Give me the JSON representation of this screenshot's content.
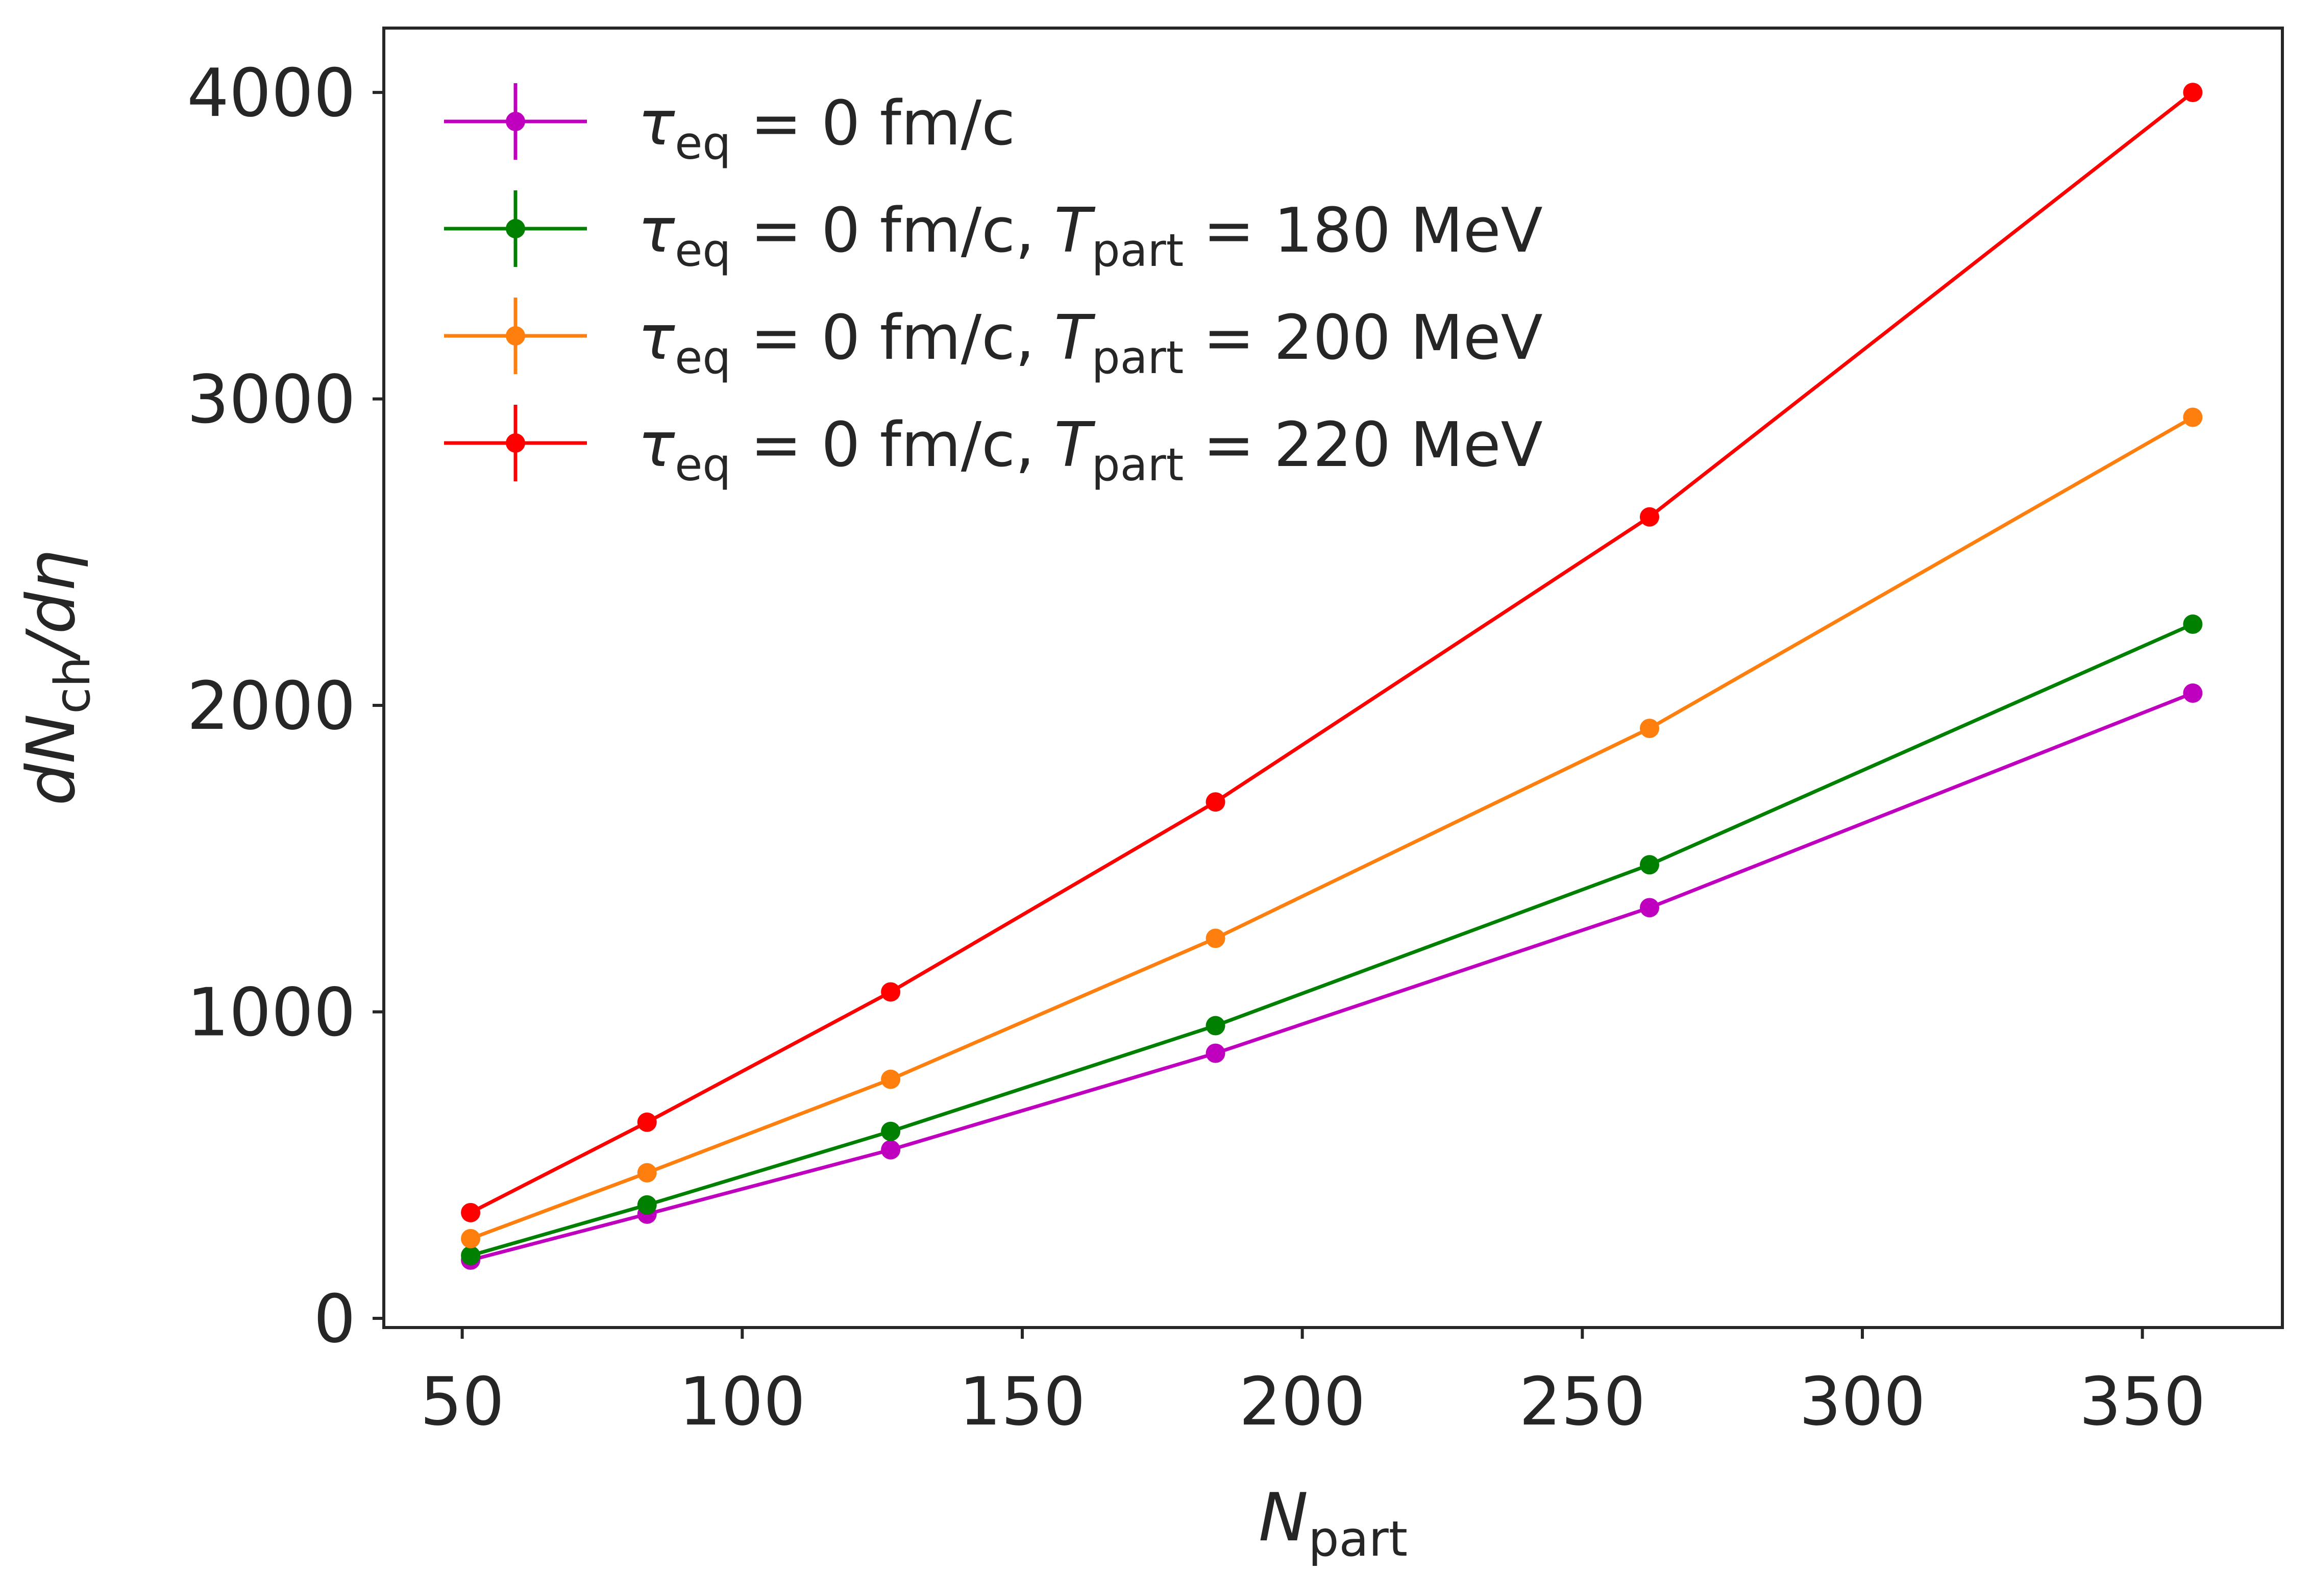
{
  "chart_data": {
    "type": "line",
    "title": "",
    "xlabel_main": "N",
    "xlabel_sub": "part",
    "ylabel_pre": "dN",
    "ylabel_sub": "ch",
    "ylabel_post": "/dη",
    "xlim": [
      36,
      375
    ],
    "ylim": [
      -30,
      4210
    ],
    "x_ticks": [
      50,
      100,
      150,
      200,
      250,
      300,
      350
    ],
    "x_tick_labels": [
      "50",
      "100",
      "150",
      "200",
      "250",
      "300",
      "350"
    ],
    "y_ticks": [
      0,
      1000,
      2000,
      3000,
      4000
    ],
    "y_tick_labels": [
      "0",
      "1000",
      "2000",
      "3000",
      "4000"
    ],
    "x": [
      51.5,
      83,
      126.5,
      184.5,
      262,
      359
    ],
    "series": [
      {
        "name": "τ_eq = 0 fm/c",
        "legend": {
          "tau": "τ",
          "tau_sub": "eq",
          "text": " = 0 fm/c",
          "t": "",
          "t_sub": "",
          "t_text": ""
        },
        "color": "#bf00bf",
        "values": [
          190,
          340,
          550,
          865,
          1340,
          2040
        ]
      },
      {
        "name": "τ_eq = 0 fm/c, T_part = 180 MeV",
        "legend": {
          "tau": "τ",
          "tau_sub": "eq",
          "text": " = 0 fm/c, ",
          "t": "T",
          "t_sub": "part",
          "t_text": " = 180 MeV"
        },
        "color": "#008000",
        "values": [
          205,
          370,
          610,
          955,
          1480,
          2265
        ]
      },
      {
        "name": "τ_eq = 0 fm/c, T_part = 200 MeV",
        "legend": {
          "tau": "τ",
          "tau_sub": "eq",
          "text": " = 0 fm/c, ",
          "t": "T",
          "t_sub": "part",
          "t_text": " = 200 MeV"
        },
        "color": "#ff7f0e",
        "values": [
          260,
          475,
          780,
          1240,
          1925,
          2940
        ]
      },
      {
        "name": "τ_eq = 0 fm/c, T_part = 220 MeV",
        "legend": {
          "tau": "τ",
          "tau_sub": "eq",
          "text": " = 0 fm/c, ",
          "t": "T",
          "t_sub": "part",
          "t_text": " = 220 MeV"
        },
        "color": "#ff0000",
        "values": [
          345,
          640,
          1065,
          1685,
          2615,
          4000
        ]
      }
    ],
    "legend_position": "upper-left",
    "grid": false
  }
}
